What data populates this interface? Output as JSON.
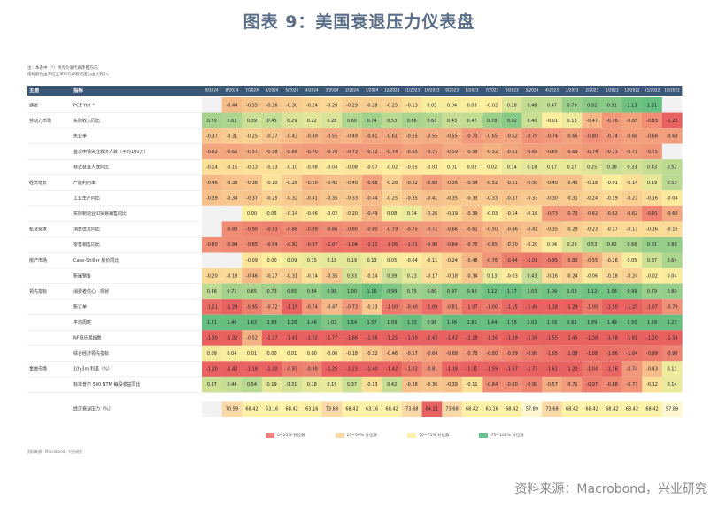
{
  "title": "图表 9：美国衰退压力仪表盘",
  "notes": [
    "注：本表中（*）项为负值代表改善方向。",
    "指标颜色由深红至深绿代表衰退压力由大到小。"
  ],
  "source": "资料来源：Macrobond，兴业研究",
  "footnote": "资料来源：Macrobond，兴业研究",
  "legend": [
    {
      "label": "0~25% 分位数",
      "color": "#f08080"
    },
    {
      "label": "25~50% 分位数",
      "color": "#fbd9a6"
    },
    {
      "label": "50~75% 分位数",
      "color": "#fdf2a8"
    },
    {
      "label": "75~100% 分位数",
      "color": "#66c48a"
    }
  ],
  "chart_data": {
    "type": "heatmap",
    "header": {
      "theme": "主题",
      "indicator": "指标"
    },
    "columns": [
      "9/2024",
      "8/2024",
      "7/2024",
      "6/2024",
      "5/2024",
      "4/2024",
      "3/2024",
      "2/2024",
      "1/2024",
      "12/2023",
      "11/2023",
      "10/2023",
      "9/2023",
      "8/2023",
      "7/2023",
      "6/2023",
      "5/2023",
      "4/2023",
      "3/2023",
      "2/2023",
      "1/2023",
      "12/2022",
      "11/2022",
      "10/2022"
    ],
    "rows": [
      {
        "theme": "通胀",
        "indicator": "PCE YoY *",
        "values": [
          null,
          -0.44,
          -0.35,
          -0.36,
          -0.3,
          -0.24,
          -0.2,
          -0.29,
          -0.28,
          -0.25,
          -0.13,
          0.05,
          0.04,
          0.03,
          -0.02,
          0.28,
          0.48,
          0.47,
          0.79,
          0.92,
          0.91,
          1.13,
          1.31,
          null
        ]
      },
      {
        "theme": "劳动力市场",
        "indicator": "实际收入同比",
        "values": [
          0.7,
          0.63,
          0.39,
          0.45,
          0.29,
          0.22,
          0.28,
          0.6,
          0.74,
          0.53,
          0.66,
          0.61,
          0.43,
          0.47,
          0.78,
          0.92,
          0.4,
          -0.01,
          0.13,
          -0.47,
          -0.76,
          -0.65,
          -0.83,
          -1.21
        ]
      },
      {
        "theme": "",
        "indicator": "失业率",
        "values": [
          -0.37,
          -0.31,
          -0.25,
          -0.37,
          -0.43,
          -0.49,
          -0.55,
          -0.49,
          -0.61,
          -0.61,
          -0.55,
          -0.55,
          -0.55,
          -0.73,
          -0.65,
          -0.62,
          -0.79,
          -0.74,
          -0.66,
          -0.8,
          -0.74,
          -0.68,
          -0.68,
          -0.68
        ]
      },
      {
        "theme": "",
        "indicator": "首次申请失业救济人数（平均100万）",
        "values": [
          -0.62,
          -0.62,
          -0.57,
          -0.58,
          -0.66,
          -0.7,
          -0.7,
          -0.73,
          -0.72,
          -0.74,
          -0.65,
          -0.71,
          -0.59,
          -0.59,
          -0.52,
          -0.61,
          -0.69,
          -0.65,
          -0.69,
          -0.74,
          -0.73,
          -0.71,
          -0.75,
          null
        ]
      },
      {
        "theme": "",
        "indicator": "非农就业人数同比",
        "values": [
          -0.14,
          -0.15,
          -0.13,
          -0.13,
          -0.1,
          -0.08,
          -0.04,
          -0.08,
          -0.07,
          -0.02,
          -0.05,
          -0.03,
          0.01,
          0.02,
          0.02,
          0.14,
          0.18,
          0.17,
          0.17,
          0.25,
          0.38,
          0.33,
          0.43,
          0.52
        ]
      },
      {
        "theme": "经济增长",
        "indicator": "产能利用率",
        "values": [
          -0.46,
          -0.38,
          -0.36,
          -0.1,
          -0.28,
          -0.5,
          -0.42,
          -0.4,
          -0.68,
          -0.28,
          -0.52,
          -0.68,
          -0.56,
          -0.54,
          -0.52,
          -0.51,
          -0.5,
          -0.4,
          -0.4,
          -0.18,
          -0.01,
          -0.14,
          0.19,
          0.53
        ]
      },
      {
        "theme": "",
        "indicator": "工业生产同比",
        "values": [
          -0.39,
          -0.34,
          -0.37,
          -0.25,
          -0.32,
          -0.41,
          -0.35,
          -0.33,
          -0.44,
          -0.25,
          -0.35,
          -0.41,
          -0.35,
          -0.33,
          -0.33,
          -0.37,
          -0.33,
          -0.3,
          -0.31,
          -0.24,
          -0.19,
          -0.27,
          -0.16,
          -0.04
        ]
      },
      {
        "theme": "",
        "indicator": "实际制造业和贸易销售同比",
        "values": [
          null,
          null,
          0.0,
          0.05,
          -0.14,
          -0.06,
          -0.02,
          -0.2,
          -0.49,
          0.08,
          0.14,
          -0.26,
          -0.19,
          -0.39,
          -0.03,
          -0.14,
          -0.16,
          -0.73,
          -0.73,
          -0.62,
          -0.62,
          -0.62,
          -0.91,
          -0.6
        ]
      },
      {
        "theme": "私营需求",
        "indicator": "消费信贷同比",
        "values": [
          null,
          -0.83,
          -0.9,
          -0.93,
          -0.88,
          -0.89,
          -0.86,
          -0.8,
          -0.8,
          -0.79,
          -0.75,
          -0.72,
          -0.66,
          -0.62,
          -0.5,
          -0.46,
          -0.41,
          -0.35,
          -0.29,
          -0.23,
          -0.17,
          -0.17,
          -0.16,
          -0.16
        ]
      },
      {
        "theme": "",
        "indicator": "零售销售同比",
        "values": [
          -0.8,
          -0.84,
          -0.85,
          -0.84,
          -0.92,
          -0.97,
          -1.07,
          -1.04,
          -1.11,
          -1.06,
          -1.01,
          -0.9,
          -0.84,
          -0.75,
          -0.65,
          -0.5,
          -0.2,
          0.04,
          0.29,
          0.53,
          0.62,
          0.66,
          0.81,
          0.8
        ]
      },
      {
        "theme": "房产市场",
        "indicator": "Case-Shiller 房价同比",
        "values": [
          null,
          null,
          -0.09,
          0.0,
          0.09,
          0.15,
          0.18,
          0.19,
          0.13,
          0.05,
          -0.04,
          -0.11,
          -0.24,
          -0.48,
          -0.76,
          -0.94,
          -1.01,
          -0.95,
          -0.8,
          -0.55,
          -0.26,
          0.05,
          0.37,
          0.64
        ]
      },
      {
        "theme": "",
        "indicator": "新屋销售",
        "values": [
          -0.2,
          -0.18,
          -0.46,
          -0.27,
          -0.31,
          -0.14,
          -0.35,
          0.33,
          -0.14,
          0.39,
          0.23,
          -0.17,
          -0.18,
          -0.34,
          0.13,
          -0.03,
          0.43,
          -0.16,
          -0.24,
          -0.06,
          -0.18,
          -0.24,
          -0.02,
          0.04
        ]
      },
      {
        "theme": "领先指标",
        "indicator": "消费者信心：现状",
        "values": [
          0.48,
          0.71,
          0.65,
          0.73,
          0.85,
          0.84,
          0.98,
          1.0,
          1.16,
          0.99,
          0.75,
          0.8,
          0.97,
          0.98,
          1.12,
          1.17,
          1.03,
          1.09,
          1.03,
          1.12,
          1.08,
          0.99,
          0.79,
          0.8
        ]
      },
      {
        "theme": "",
        "indicator": "新订单",
        "values": [
          -1.11,
          -1.29,
          -0.95,
          -0.72,
          -1.19,
          -0.74,
          -0.47,
          -0.73,
          -0.33,
          -1.0,
          -0.9,
          -1.09,
          -0.81,
          -1.07,
          -1.0,
          -1.15,
          -1.49,
          -1.18,
          -1.29,
          -1.0,
          -1.5,
          -1.25,
          -1.07,
          -0.79
        ]
      },
      {
        "theme": "",
        "indicator": "平均周时",
        "values": [
          1.21,
          1.46,
          1.63,
          1.83,
          1.28,
          1.46,
          1.02,
          1.54,
          1.57,
          1.09,
          1.33,
          0.98,
          1.46,
          1.82,
          1.44,
          1.56,
          2.02,
          1.69,
          1.62,
          1.89,
          1.49,
          1.5,
          1.69,
          1.23
        ]
      },
      {
        "theme": "",
        "indicator": "NFIB乐观指数",
        "values": [
          -1.3,
          -1.32,
          -0.52,
          -1.27,
          -1.41,
          -1.52,
          -1.77,
          -1.66,
          -1.56,
          -1.25,
          -1.5,
          -1.43,
          -1.43,
          -1.29,
          -1.16,
          -1.39,
          -1.56,
          -1.55,
          -1.45,
          -1.38,
          -1.48,
          -1.61,
          -1.2,
          -1.34
        ]
      },
      {
        "theme": "",
        "indicator": "综合经济领先指标",
        "values": [
          0.09,
          0.04,
          0.01,
          0.0,
          0.01,
          0.0,
          -0.06,
          -0.18,
          -0.32,
          -0.46,
          -0.57,
          -0.64,
          -0.68,
          -0.73,
          -0.8,
          -0.89,
          -0.99,
          -1.05,
          -1.08,
          -1.08,
          -1.06,
          -1.04,
          -0.99,
          -0.9
        ]
      },
      {
        "theme": "金融市场",
        "indicator": "10y3m 利差（%）",
        "values": [
          -1.2,
          -1.42,
          -1.18,
          -1.2,
          -0.97,
          -0.9,
          -1.25,
          -1.23,
          -1.4,
          -1.42,
          -1.02,
          -0.81,
          -1.18,
          -1.31,
          -1.59,
          -1.67,
          -1.73,
          -1.61,
          -1.2,
          -1.04,
          -1.16,
          -0.74,
          -0.43,
          0.11
        ]
      },
      {
        "theme": "",
        "indicator": "标准普尔 500 NTM 每股收益同比",
        "values": [
          0.37,
          0.44,
          0.54,
          0.19,
          0.31,
          0.18,
          0.15,
          0.37,
          -0.13,
          0.42,
          -0.38,
          -0.36,
          -0.39,
          -0.11,
          -0.84,
          -0.8,
          -0.9,
          -0.57,
          -0.71,
          -0.97,
          -0.88,
          -0.77,
          -0.12,
          0.14
        ]
      }
    ],
    "summary": {
      "indicator": "经济衰退压力（%）",
      "values": [
        null,
        70.59,
        68.42,
        63.16,
        68.42,
        63.16,
        73.68,
        68.42,
        63.16,
        68.42,
        73.68,
        84.21,
        73.68,
        68.42,
        63.16,
        68.42,
        57.89,
        73.68,
        68.42,
        68.42,
        68.42,
        68.42,
        68.42,
        57.89
      ]
    }
  }
}
